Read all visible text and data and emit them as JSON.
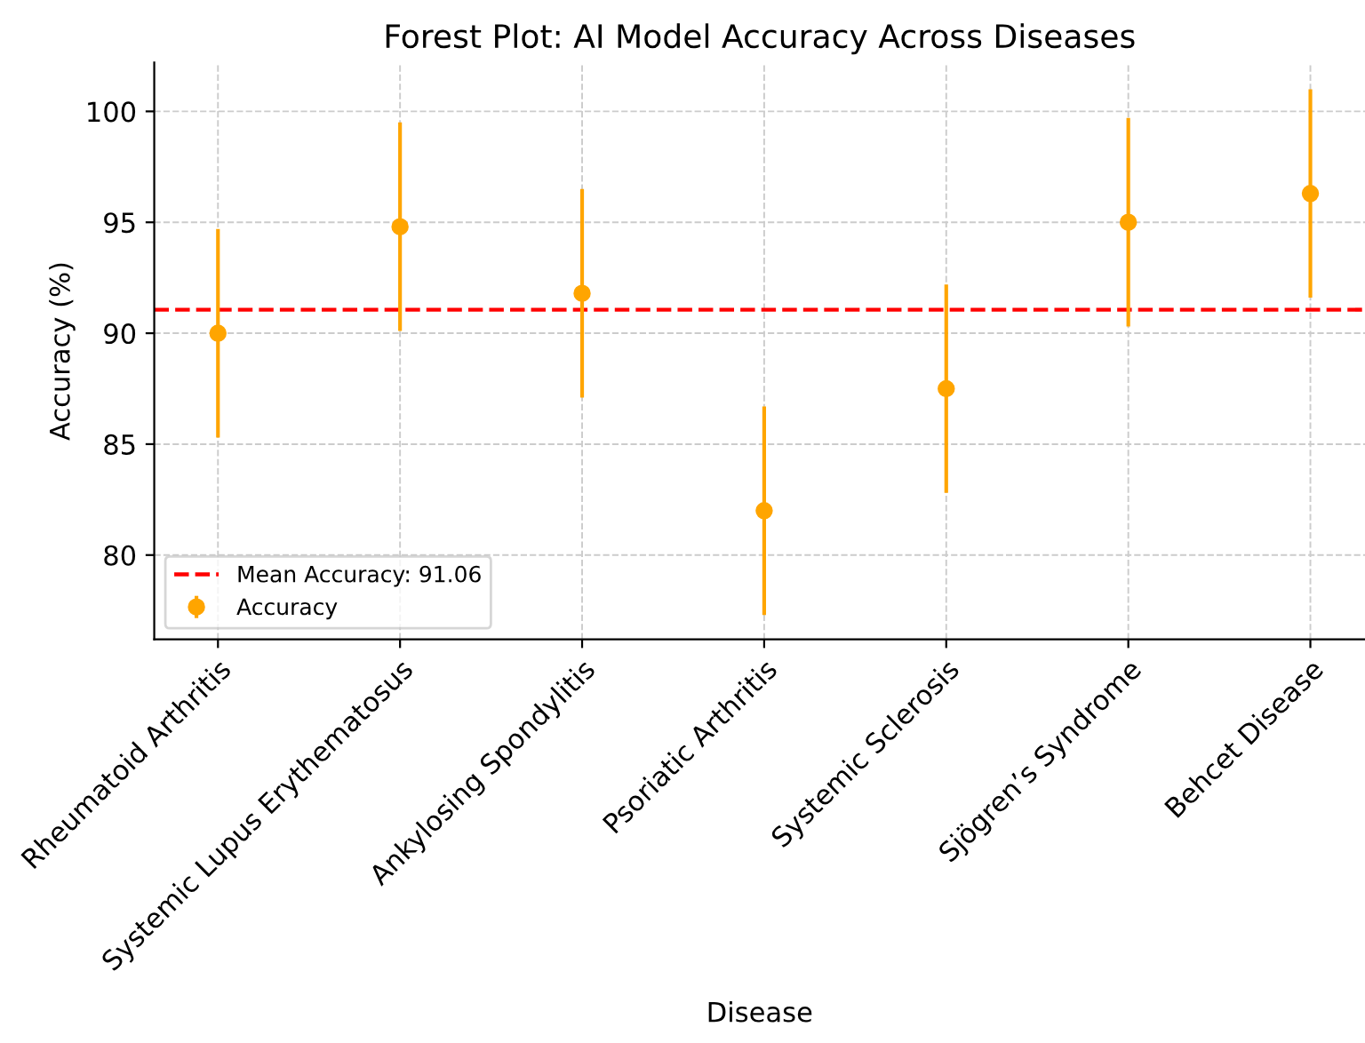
{
  "chart_data": {
    "type": "scatter",
    "title": "Forest Plot: AI Model Accuracy Across Diseases",
    "xlabel": "Disease",
    "ylabel": "Accuracy (%)",
    "categories": [
      "Rheumatoid Arthritis",
      "Systemic Lupus Erythematosus",
      "Ankylosing Spondylitis",
      "Psoriatic Arthritis",
      "Systemic Sclerosis",
      "Sjögren’s Syndrome",
      "Behcet Disease"
    ],
    "series": [
      {
        "name": "Accuracy",
        "color": "#ffa500",
        "values": [
          90.0,
          94.8,
          91.8,
          82.0,
          87.5,
          95.0,
          96.3
        ],
        "errors": [
          4.7,
          4.7,
          4.7,
          4.7,
          4.7,
          4.7,
          4.7
        ]
      }
    ],
    "ref_lines": [
      {
        "axis": "y",
        "value": 91.06,
        "label": "Mean Accuracy: 91.06",
        "color": "#ff0000",
        "line_style": "dashed"
      }
    ],
    "ylim": [
      76.2,
      102.2
    ],
    "yticks": [
      80,
      85,
      90,
      95,
      100
    ],
    "grid": true,
    "legend": "bottom left",
    "marker": "circle"
  }
}
